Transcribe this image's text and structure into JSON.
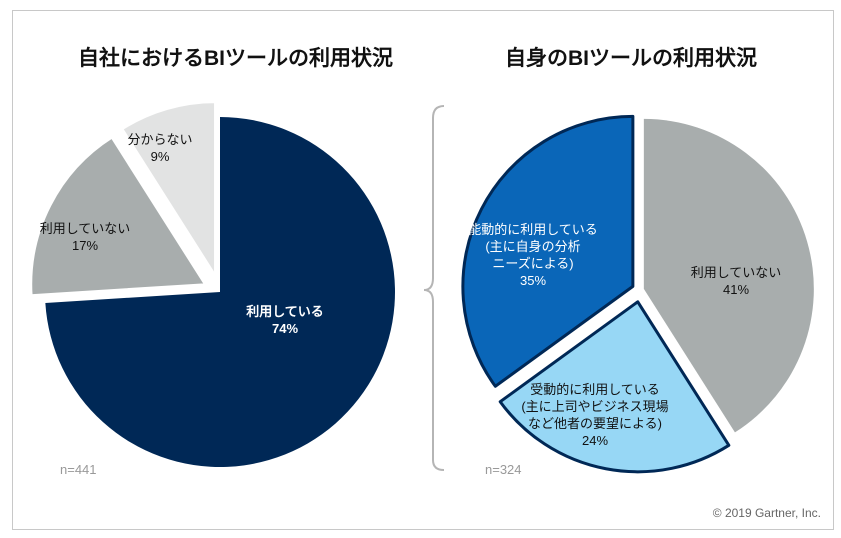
{
  "copyright": "© 2019 Gartner, Inc.",
  "chart_data": [
    {
      "type": "pie",
      "title": "自社におけるBIツールの利用状況",
      "n_label": "n=441",
      "slices": [
        {
          "label": "利用している",
          "value": 74,
          "value_label": "74%",
          "color": "#002856",
          "text_color": "#ffffff",
          "bold": true
        },
        {
          "label": "利用していない",
          "value": 17,
          "value_label": "17%",
          "color": "#a8adad",
          "text_color": "#111111",
          "bold": false
        },
        {
          "label": "分からない",
          "value": 9,
          "value_label": "9%",
          "color": "#e2e3e3",
          "text_color": "#111111",
          "bold": false
        }
      ]
    },
    {
      "type": "pie",
      "title": "自身のBIツールの利用状況",
      "n_label": "n=324",
      "slices": [
        {
          "label": "利用していない",
          "value": 41,
          "value_label": "41%",
          "color": "#a8adad",
          "text_color": "#111111",
          "bold": false
        },
        {
          "label": "受動的に利用している\n(主に上司やビジネス現場\nなど他者の要望による)",
          "value": 24,
          "value_label": "24%",
          "color": "#97d7f5",
          "text_color": "#111111",
          "bold": false
        },
        {
          "label": "能動的に利用している\n(主に自身の分析\nニーズによる)",
          "value": 35,
          "value_label": "35%",
          "color": "#0a66b8",
          "text_color": "#ffffff",
          "bold": false
        }
      ]
    }
  ]
}
